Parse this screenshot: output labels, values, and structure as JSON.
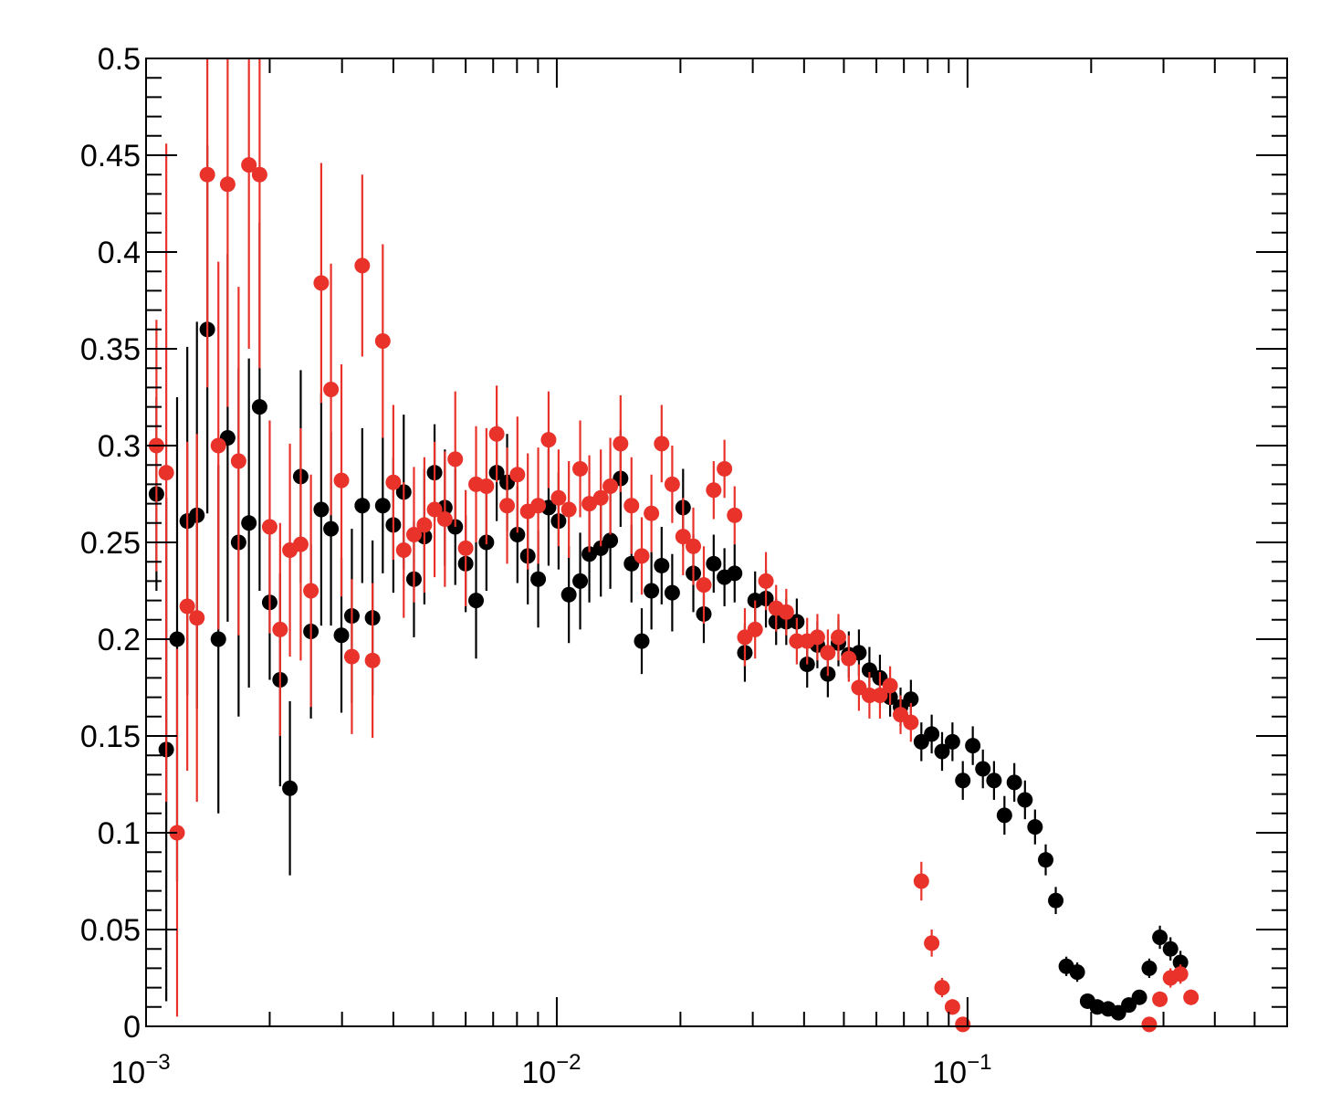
{
  "chart_data": {
    "type": "scatter",
    "title": "",
    "xlabel": "",
    "ylabel": "",
    "xscale": "log",
    "xlim": [
      0.001,
      0.6
    ],
    "ylim": [
      0,
      0.5
    ],
    "grid": false,
    "x_ticks": [
      {
        "value": 0.001,
        "base": "10",
        "exp": "−3"
      },
      {
        "value": 0.01,
        "base": "10",
        "exp": "−2"
      },
      {
        "value": 0.1,
        "base": "10",
        "exp": "−1"
      }
    ],
    "y_ticks": [
      "0",
      "0.05",
      "0.1",
      "0.15",
      "0.2",
      "0.25",
      "0.3",
      "0.35",
      "0.4",
      "0.45",
      "0.5"
    ],
    "series": [
      {
        "color": "#000000",
        "points": [
          [
            0.00106,
            0.275,
            0.05
          ],
          [
            0.00112,
            0.143,
            0.13
          ],
          [
            0.00119,
            0.2,
            0.125
          ],
          [
            0.00126,
            0.261,
            0.09
          ],
          [
            0.00133,
            0.264,
            0.1
          ],
          [
            0.00141,
            0.36,
            0.095
          ],
          [
            0.0015,
            0.2,
            0.09
          ],
          [
            0.00158,
            0.304,
            0.095
          ],
          [
            0.00168,
            0.25,
            0.09
          ],
          [
            0.00178,
            0.26,
            0.085
          ],
          [
            0.00189,
            0.32,
            0.095
          ],
          [
            0.002,
            0.219,
            0.04
          ],
          [
            0.00212,
            0.179,
            0.055
          ],
          [
            0.00224,
            0.123,
            0.045
          ],
          [
            0.00238,
            0.284,
            0.055
          ],
          [
            0.00252,
            0.204,
            0.045
          ],
          [
            0.00267,
            0.267,
            0.06
          ],
          [
            0.00282,
            0.257,
            0.05
          ],
          [
            0.00299,
            0.202,
            0.04
          ],
          [
            0.00317,
            0.212,
            0.045
          ],
          [
            0.00336,
            0.269,
            0.04
          ],
          [
            0.00356,
            0.211,
            0.04
          ],
          [
            0.00377,
            0.269,
            0.035
          ],
          [
            0.004,
            0.259,
            0.035
          ],
          [
            0.00424,
            0.276,
            0.04
          ],
          [
            0.00449,
            0.231,
            0.03
          ],
          [
            0.00476,
            0.253,
            0.035
          ],
          [
            0.00504,
            0.286,
            0.025
          ],
          [
            0.00534,
            0.268,
            0.03
          ],
          [
            0.00566,
            0.258,
            0.03
          ],
          [
            0.006,
            0.239,
            0.025
          ],
          [
            0.00636,
            0.22,
            0.03
          ],
          [
            0.00674,
            0.25,
            0.025
          ],
          [
            0.00714,
            0.286,
            0.025
          ],
          [
            0.00757,
            0.281,
            0.025
          ],
          [
            0.00802,
            0.254,
            0.025
          ],
          [
            0.0085,
            0.243,
            0.025
          ],
          [
            0.00901,
            0.231,
            0.025
          ],
          [
            0.00955,
            0.268,
            0.03
          ],
          [
            0.0101,
            0.261,
            0.025
          ],
          [
            0.0107,
            0.223,
            0.025
          ],
          [
            0.0114,
            0.23,
            0.025
          ],
          [
            0.012,
            0.244,
            0.025
          ],
          [
            0.0128,
            0.247,
            0.025
          ],
          [
            0.0135,
            0.251,
            0.025
          ],
          [
            0.0143,
            0.283,
            0.025
          ],
          [
            0.0152,
            0.239,
            0.02
          ],
          [
            0.0161,
            0.199,
            0.017
          ],
          [
            0.017,
            0.225,
            0.02
          ],
          [
            0.018,
            0.238,
            0.02
          ],
          [
            0.0191,
            0.224,
            0.02
          ],
          [
            0.0203,
            0.268,
            0.02
          ],
          [
            0.0215,
            0.234,
            0.02
          ],
          [
            0.0228,
            0.213,
            0.015
          ],
          [
            0.0241,
            0.239,
            0.015
          ],
          [
            0.0256,
            0.232,
            0.015
          ],
          [
            0.0271,
            0.234,
            0.015
          ],
          [
            0.0287,
            0.193,
            0.015
          ],
          [
            0.0304,
            0.22,
            0.015
          ],
          [
            0.0323,
            0.221,
            0.015
          ],
          [
            0.0342,
            0.209,
            0.012
          ],
          [
            0.0362,
            0.209,
            0.012
          ],
          [
            0.0384,
            0.209,
            0.012
          ],
          [
            0.0407,
            0.187,
            0.012
          ],
          [
            0.0431,
            0.197,
            0.012
          ],
          [
            0.0457,
            0.182,
            0.012
          ],
          [
            0.0485,
            0.198,
            0.012
          ],
          [
            0.0514,
            0.192,
            0.012
          ],
          [
            0.0544,
            0.193,
            0.012
          ],
          [
            0.0577,
            0.184,
            0.012
          ],
          [
            0.0612,
            0.18,
            0.012
          ],
          [
            0.0648,
            0.17,
            0.01
          ],
          [
            0.0687,
            0.165,
            0.01
          ],
          [
            0.0728,
            0.169,
            0.01
          ],
          [
            0.0772,
            0.147,
            0.01
          ],
          [
            0.0818,
            0.151,
            0.01
          ],
          [
            0.0867,
            0.142,
            0.01
          ],
          [
            0.0919,
            0.147,
            0.01
          ],
          [
            0.0974,
            0.127,
            0.01
          ],
          [
            0.103,
            0.145,
            0.01
          ],
          [
            0.109,
            0.133,
            0.01
          ],
          [
            0.116,
            0.127,
            0.01
          ],
          [
            0.123,
            0.109,
            0.01
          ],
          [
            0.13,
            0.126,
            0.01
          ],
          [
            0.138,
            0.117,
            0.01
          ],
          [
            0.146,
            0.103,
            0.009
          ],
          [
            0.155,
            0.086,
            0.008
          ],
          [
            0.164,
            0.065,
            0.007
          ],
          [
            0.174,
            0.031,
            0.005
          ],
          [
            0.185,
            0.028,
            0.005
          ],
          [
            0.196,
            0.013,
            0.003
          ],
          [
            0.207,
            0.01,
            0.003
          ],
          [
            0.22,
            0.009,
            0.003
          ],
          [
            0.233,
            0.007,
            0.003
          ],
          [
            0.247,
            0.011,
            0.003
          ],
          [
            0.262,
            0.015,
            0.003
          ],
          [
            0.277,
            0.03,
            0.005
          ],
          [
            0.294,
            0.046,
            0.006
          ],
          [
            0.312,
            0.04,
            0.006
          ],
          [
            0.33,
            0.033,
            0.006
          ]
        ]
      },
      {
        "color": "#e8322a",
        "points": [
          [
            0.00106,
            0.3,
            0.065
          ],
          [
            0.00112,
            0.286,
            0.17
          ],
          [
            0.00119,
            0.1,
            0.095
          ],
          [
            0.00126,
            0.217,
            0.085
          ],
          [
            0.00133,
            0.211,
            0.095
          ],
          [
            0.00141,
            0.44,
            0.11
          ],
          [
            0.0015,
            0.3,
            0.095
          ],
          [
            0.00158,
            0.435,
            0.115
          ],
          [
            0.00168,
            0.292,
            0.09
          ],
          [
            0.00178,
            0.445,
            0.095
          ],
          [
            0.00189,
            0.44,
            0.1
          ],
          [
            0.002,
            0.258,
            0.055
          ],
          [
            0.00212,
            0.205,
            0.055
          ],
          [
            0.00224,
            0.246,
            0.055
          ],
          [
            0.00238,
            0.249,
            0.06
          ],
          [
            0.00252,
            0.225,
            0.06
          ],
          [
            0.00267,
            0.384,
            0.062
          ],
          [
            0.00282,
            0.329,
            0.065
          ],
          [
            0.00299,
            0.282,
            0.06
          ],
          [
            0.00317,
            0.191,
            0.04
          ],
          [
            0.00336,
            0.393,
            0.047
          ],
          [
            0.00356,
            0.189,
            0.04
          ],
          [
            0.00377,
            0.354,
            0.05
          ],
          [
            0.004,
            0.281,
            0.04
          ],
          [
            0.00424,
            0.246,
            0.035
          ],
          [
            0.00449,
            0.254,
            0.035
          ],
          [
            0.00476,
            0.259,
            0.035
          ],
          [
            0.00504,
            0.267,
            0.035
          ],
          [
            0.00534,
            0.262,
            0.035
          ],
          [
            0.00566,
            0.293,
            0.035
          ],
          [
            0.006,
            0.247,
            0.03
          ],
          [
            0.00636,
            0.28,
            0.03
          ],
          [
            0.00674,
            0.279,
            0.03
          ],
          [
            0.00714,
            0.306,
            0.025
          ],
          [
            0.00757,
            0.269,
            0.03
          ],
          [
            0.00802,
            0.285,
            0.03
          ],
          [
            0.0085,
            0.266,
            0.03
          ],
          [
            0.00901,
            0.269,
            0.03
          ],
          [
            0.00955,
            0.303,
            0.025
          ],
          [
            0.0101,
            0.273,
            0.025
          ],
          [
            0.0107,
            0.267,
            0.025
          ],
          [
            0.0114,
            0.288,
            0.025
          ],
          [
            0.012,
            0.27,
            0.025
          ],
          [
            0.0128,
            0.273,
            0.025
          ],
          [
            0.0135,
            0.279,
            0.025
          ],
          [
            0.0143,
            0.301,
            0.025
          ],
          [
            0.0152,
            0.269,
            0.025
          ],
          [
            0.0161,
            0.243,
            0.02
          ],
          [
            0.017,
            0.265,
            0.02
          ],
          [
            0.018,
            0.301,
            0.02
          ],
          [
            0.0191,
            0.28,
            0.02
          ],
          [
            0.0203,
            0.253,
            0.02
          ],
          [
            0.0215,
            0.248,
            0.02
          ],
          [
            0.0228,
            0.228,
            0.02
          ],
          [
            0.0241,
            0.277,
            0.015
          ],
          [
            0.0256,
            0.288,
            0.015
          ],
          [
            0.0271,
            0.264,
            0.015
          ],
          [
            0.0287,
            0.201,
            0.015
          ],
          [
            0.0304,
            0.205,
            0.015
          ],
          [
            0.0323,
            0.23,
            0.015
          ],
          [
            0.0342,
            0.216,
            0.012
          ],
          [
            0.0362,
            0.214,
            0.012
          ],
          [
            0.0384,
            0.199,
            0.012
          ],
          [
            0.0407,
            0.199,
            0.012
          ],
          [
            0.0431,
            0.201,
            0.012
          ],
          [
            0.0457,
            0.193,
            0.012
          ],
          [
            0.0485,
            0.201,
            0.012
          ],
          [
            0.0514,
            0.19,
            0.012
          ],
          [
            0.0544,
            0.175,
            0.012
          ],
          [
            0.0577,
            0.171,
            0.012
          ],
          [
            0.0612,
            0.171,
            0.012
          ],
          [
            0.0648,
            0.176,
            0.01
          ],
          [
            0.0687,
            0.161,
            0.01
          ],
          [
            0.0728,
            0.157,
            0.01
          ],
          [
            0.0772,
            0.075,
            0.01
          ],
          [
            0.0818,
            0.043,
            0.007
          ],
          [
            0.0867,
            0.02,
            0.005
          ],
          [
            0.0919,
            0.01,
            0.004
          ],
          [
            0.0974,
            0.001,
            0.003
          ],
          [
            0.277,
            0.001,
            0.003
          ],
          [
            0.294,
            0.014,
            0.004
          ],
          [
            0.312,
            0.025,
            0.005
          ],
          [
            0.33,
            0.027,
            0.005
          ],
          [
            0.35,
            0.015,
            0.004
          ]
        ]
      }
    ]
  }
}
